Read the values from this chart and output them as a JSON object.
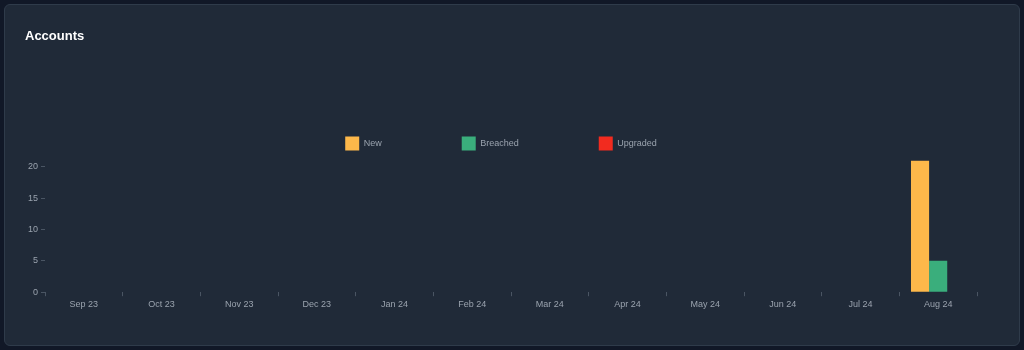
{
  "chart_data": {
    "type": "bar",
    "title": "Accounts",
    "categories": [
      "Sep 23",
      "Oct 23",
      "Nov 23",
      "Dec 23",
      "Jan 24",
      "Feb 24",
      "Mar 24",
      "Apr 24",
      "May 24",
      "Jun 24",
      "Jul 24",
      "Aug 24"
    ],
    "series": [
      {
        "name": "New",
        "color": "#fdb84a",
        "values": [
          0,
          0,
          0,
          0,
          0,
          0,
          0,
          0,
          0,
          0,
          0,
          21
        ]
      },
      {
        "name": "Breached",
        "color": "#3aae7c",
        "values": [
          0,
          0,
          0,
          0,
          0,
          0,
          0,
          0,
          0,
          0,
          0,
          5
        ]
      },
      {
        "name": "Upgraded",
        "color": "#f22b1f",
        "values": [
          0,
          0,
          0,
          0,
          0,
          0,
          0,
          0,
          0,
          0,
          0,
          0
        ]
      }
    ],
    "ylim": [
      0,
      21
    ],
    "yticks": [
      0,
      5,
      10,
      15,
      20
    ],
    "grid": false,
    "legend": "top"
  }
}
